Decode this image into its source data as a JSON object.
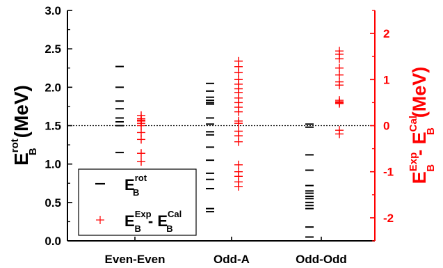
{
  "chart_data": {
    "type": "scatter",
    "categories": [
      "Even-Even",
      "Odd-A",
      "Odd-Odd"
    ],
    "left_axis": {
      "label_main": "E",
      "label_sub": "B",
      "label_sup": "rot",
      "label_unit": "(MeV)",
      "ylim": [
        0.0,
        3.0
      ],
      "ticks": [
        "0.0",
        "0.5",
        "1.0",
        "1.5",
        "2.0",
        "2.5",
        "3.0"
      ]
    },
    "right_axis": {
      "label_main1": "E",
      "label_sub1": "B",
      "label_sup1": "Exp",
      "label_mid": "- E",
      "label_sub2": "B",
      "label_sup2": "Cal",
      "label_unit": "(MeV)",
      "ylim": [
        -2.5,
        2.5
      ],
      "ticks": [
        "-2",
        "-1",
        "0",
        "1",
        "2"
      ],
      "color": "#ff0000"
    },
    "reference_line": {
      "right_value": 0,
      "style": "dotted"
    },
    "legend": {
      "position": "bottom-left",
      "entries": [
        {
          "marker": "dash",
          "main": "E",
          "sub": "B",
          "sup": "rot",
          "color": "#000000"
        },
        {
          "marker": "plus",
          "main": "E",
          "sub": "B",
          "sup": "Exp",
          "mid": "- E",
          "sub2": "B",
          "sup2": "Cal",
          "color": "#ff0000"
        }
      ]
    },
    "series": [
      {
        "key": "Erot",
        "axis": "left",
        "marker": "dash",
        "color": "#000000",
        "values": [
          [
            2.27,
            2.0,
            1.82,
            1.72,
            1.6,
            1.55,
            1.5,
            1.15
          ],
          [
            2.05,
            1.95,
            1.87,
            1.83,
            1.8,
            1.78,
            1.6,
            1.52,
            1.42,
            1.38,
            1.22,
            1.05,
            0.88,
            0.8,
            0.68,
            0.42,
            0.38
          ],
          [
            1.52,
            1.48,
            1.12,
            0.92,
            0.72,
            0.65,
            0.62,
            0.58,
            0.55,
            0.5,
            0.46,
            0.42,
            0.18,
            0.05
          ]
        ]
      },
      {
        "key": "Ediff",
        "axis": "right",
        "marker": "plus",
        "color": "#ff0000",
        "values": [
          [
            0.22,
            0.15,
            0.12,
            0.1,
            0.05,
            0.0,
            -0.15,
            -0.3,
            -0.6,
            -0.78
          ],
          [
            1.4,
            1.28,
            1.15,
            1.0,
            0.9,
            0.8,
            0.72,
            0.6,
            0.5,
            0.4,
            0.3,
            0.1,
            0.05,
            -0.12,
            -0.22,
            -0.35,
            -0.85,
            -1.0,
            -1.1,
            -1.22,
            -1.32
          ],
          [
            1.62,
            1.55,
            1.45,
            1.25,
            1.1,
            0.95,
            0.88,
            0.55,
            0.52,
            0.5,
            0.48,
            -0.1,
            -0.18
          ]
        ]
      }
    ]
  }
}
